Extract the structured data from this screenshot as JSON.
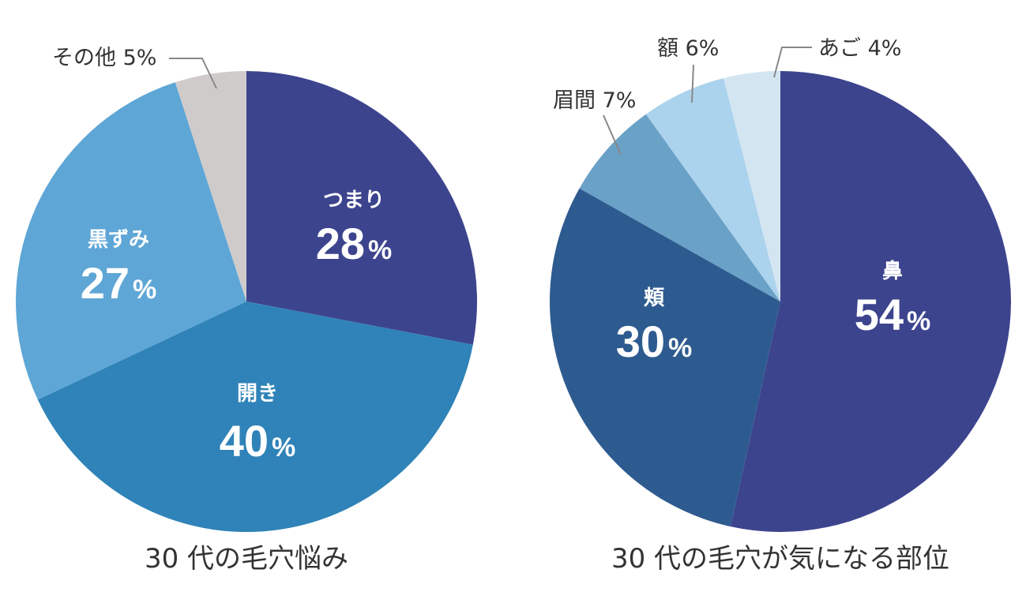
{
  "chart_data": [
    {
      "type": "pie",
      "title": "30 代の毛穴悩み",
      "categories": [
        "つまり",
        "開き",
        "黒ずみ",
        "その他"
      ],
      "values": [
        28,
        40,
        27,
        5
      ],
      "value_labels": [
        "28%",
        "40%",
        "27%",
        "5%"
      ],
      "colors": [
        "#3d448e",
        "#2f83b8",
        "#5ea6d6",
        "#cfcbcb"
      ],
      "outside_labels": [
        "その他 5%"
      ]
    },
    {
      "type": "pie",
      "title": "30 代の毛穴が気になる部位",
      "categories": [
        "鼻",
        "頬",
        "眉間",
        "額",
        "あご"
      ],
      "values": [
        54,
        30,
        7,
        6,
        4
      ],
      "value_labels": [
        "54%",
        "30%",
        "7%",
        "6%",
        "4%"
      ],
      "colors": [
        "#3d448e",
        "#2e5b8f",
        "#6aa1c7",
        "#acd3ed",
        "#d4e5f2"
      ],
      "outside_labels": [
        "眉間 7%",
        "額 6%",
        "あご 4%"
      ]
    }
  ]
}
